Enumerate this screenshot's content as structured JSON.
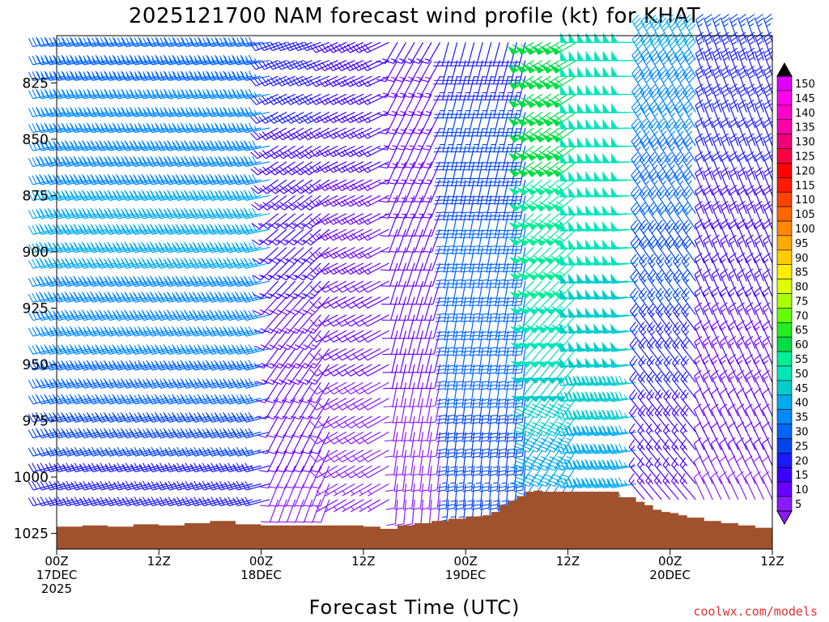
{
  "chart_data": {
    "type": "wind_barb_time_height",
    "title": "2025121700 NAM forecast wind profile (kt) for KHAT",
    "xlabel": "Forecast Time (UTC)",
    "ylabel": "",
    "credit": "coolwx.com/models",
    "y_scale": "pressure (hPa), inverted",
    "ylim": [
      1032,
      804
    ],
    "y_ticks": [
      "825",
      "850",
      "875",
      "900",
      "925",
      "950",
      "975",
      "1000",
      "1025"
    ],
    "y_tick_values": [
      825,
      850,
      875,
      900,
      925,
      950,
      975,
      1000,
      1025
    ],
    "x_ticks": [
      {
        "hour": 0,
        "line1": "00Z",
        "line2": "17DEC",
        "line3": "2025"
      },
      {
        "hour": 12,
        "line1": "12Z",
        "line2": "",
        "line3": ""
      },
      {
        "hour": 24,
        "line1": "00Z",
        "line2": "18DEC",
        "line3": ""
      },
      {
        "hour": 36,
        "line1": "12Z",
        "line2": "",
        "line3": ""
      },
      {
        "hour": 48,
        "line1": "00Z",
        "line2": "19DEC",
        "line3": ""
      },
      {
        "hour": 60,
        "line1": "12Z",
        "line2": "",
        "line3": ""
      },
      {
        "hour": 72,
        "line1": "00Z",
        "line2": "20DEC",
        "line3": ""
      },
      {
        "hour": 84,
        "line1": "12Z",
        "line2": "",
        "line3": ""
      }
    ],
    "xlim": [
      0,
      84
    ],
    "legend": {
      "placement": "right",
      "units": "kt",
      "levels": [
        "5",
        "10",
        "15",
        "20",
        "25",
        "30",
        "35",
        "40",
        "45",
        "50",
        "55",
        "60",
        "65",
        "70",
        "75",
        "80",
        "85",
        "90",
        "95",
        "100",
        "105",
        "110",
        "115",
        "120",
        "125",
        "130",
        "135",
        "140",
        "145",
        "150"
      ],
      "colors": [
        "#8c1aff",
        "#6a00ff",
        "#3c00ff",
        "#1a1aff",
        "#0044ee",
        "#0066ff",
        "#0088ff",
        "#00aaee",
        "#00cccc",
        "#00e6bb",
        "#00ee99",
        "#00dd44",
        "#22ee22",
        "#66ff00",
        "#aaff00",
        "#ddff00",
        "#ffee00",
        "#ffcc00",
        "#ffaa00",
        "#ff8800",
        "#ff6600",
        "#ff4400",
        "#ff1a00",
        "#ff0000",
        "#ff0044",
        "#ee0077",
        "#ff00aa",
        "#ff00cc",
        "#ff00ee",
        "#dd00ff"
      ]
    },
    "terrain": {
      "color": "#a0522d",
      "hours": [
        0,
        3,
        6,
        9,
        12,
        15,
        18,
        21,
        24,
        27,
        30,
        33,
        36,
        38,
        40,
        42,
        44,
        46,
        48,
        50,
        51,
        52,
        53,
        54,
        55,
        56,
        57,
        58,
        60,
        62,
        64,
        66,
        68,
        69,
        70,
        71,
        72,
        73,
        74,
        76,
        78,
        80,
        82,
        84
      ],
      "pressure": [
        1022,
        1021.5,
        1022,
        1021,
        1021.5,
        1020.5,
        1019.5,
        1021,
        1021.5,
        1021.5,
        1021.5,
        1021.5,
        1022,
        1023,
        1021.5,
        1020.5,
        1019.5,
        1018.5,
        1017.5,
        1017,
        1015.5,
        1012.5,
        1010.5,
        1008.5,
        1006.5,
        1006,
        1006.5,
        1006.5,
        1006.5,
        1006.5,
        1006.5,
        1009,
        1011,
        1012.5,
        1014.5,
        1015.5,
        1016,
        1017,
        1018,
        1019.5,
        1020.5,
        1021.5,
        1022.5,
        1023
      ]
    },
    "wind_profile": {
      "levels_hpa": [
        807,
        815,
        822,
        830,
        838,
        845,
        853,
        860,
        868,
        875,
        883,
        890,
        898,
        905,
        913,
        920,
        928,
        935,
        943,
        950,
        958,
        965,
        973,
        980,
        988,
        995,
        1003,
        1010
      ],
      "hours": [
        0,
        1,
        2,
        3,
        4,
        5,
        6,
        7,
        8,
        9,
        10,
        11,
        12,
        13,
        14,
        15,
        16,
        17,
        18,
        19,
        20,
        21,
        22,
        23,
        24,
        25,
        26,
        27,
        28,
        29,
        30,
        31,
        32,
        33,
        34,
        35,
        36,
        37,
        38,
        39,
        40,
        41,
        42,
        43,
        44,
        45,
        46,
        47,
        48,
        49,
        50,
        51,
        52,
        53,
        54,
        55,
        56,
        57,
        58,
        59,
        60,
        61,
        62,
        63,
        64,
        65,
        66,
        67,
        68,
        69,
        70,
        71,
        72,
        73,
        74,
        75,
        76,
        77,
        78,
        79,
        80,
        81,
        82,
        83,
        84
      ],
      "segments": [
        {
          "hours": [
            0,
            26
          ],
          "speed_top": 32,
          "speed_bottom": 20,
          "speed_mid_boost": 14,
          "dir_top": 260,
          "dir_bottom": 255
        },
        {
          "hours": [
            26,
            33
          ],
          "speed_top": 22,
          "speed_bottom": 9,
          "speed_mid_boost": 0,
          "dir_top": 250,
          "dir_bottom": 200
        },
        {
          "hours": [
            33,
            40
          ],
          "speed_top": 18,
          "speed_bottom": 7,
          "speed_mid_boost": 0,
          "dir_top": 245,
          "dir_bottom": 240
        },
        {
          "hours": [
            40,
            46
          ],
          "speed_top": 15,
          "speed_bottom": 8,
          "speed_mid_boost": 0,
          "dir_top": 210,
          "dir_bottom": 185
        },
        {
          "hours": [
            46,
            56
          ],
          "speed_top": 22,
          "speed_bottom": 25,
          "speed_mid_boost": 8,
          "dir_top": 195,
          "dir_bottom": 185
        },
        {
          "hours": [
            56,
            62
          ],
          "speed_top": 62,
          "speed_bottom": 38,
          "speed_mid_boost": 6,
          "dir_top": 240,
          "dir_bottom": 210
        },
        {
          "hours": [
            62,
            69
          ],
          "speed_top": 50,
          "speed_bottom": 42,
          "speed_mid_boost": 4,
          "dir_top": 270,
          "dir_bottom": 260
        },
        {
          "hours": [
            69,
            76
          ],
          "speed_top": 42,
          "speed_bottom": 14,
          "speed_mid_boost": 0,
          "dir_top": 330,
          "dir_bottom": 320
        },
        {
          "hours": [
            76,
            85
          ],
          "speed_top": 25,
          "speed_bottom": 9,
          "speed_mid_boost": 0,
          "dir_top": 340,
          "dir_bottom": 335
        }
      ]
    }
  }
}
